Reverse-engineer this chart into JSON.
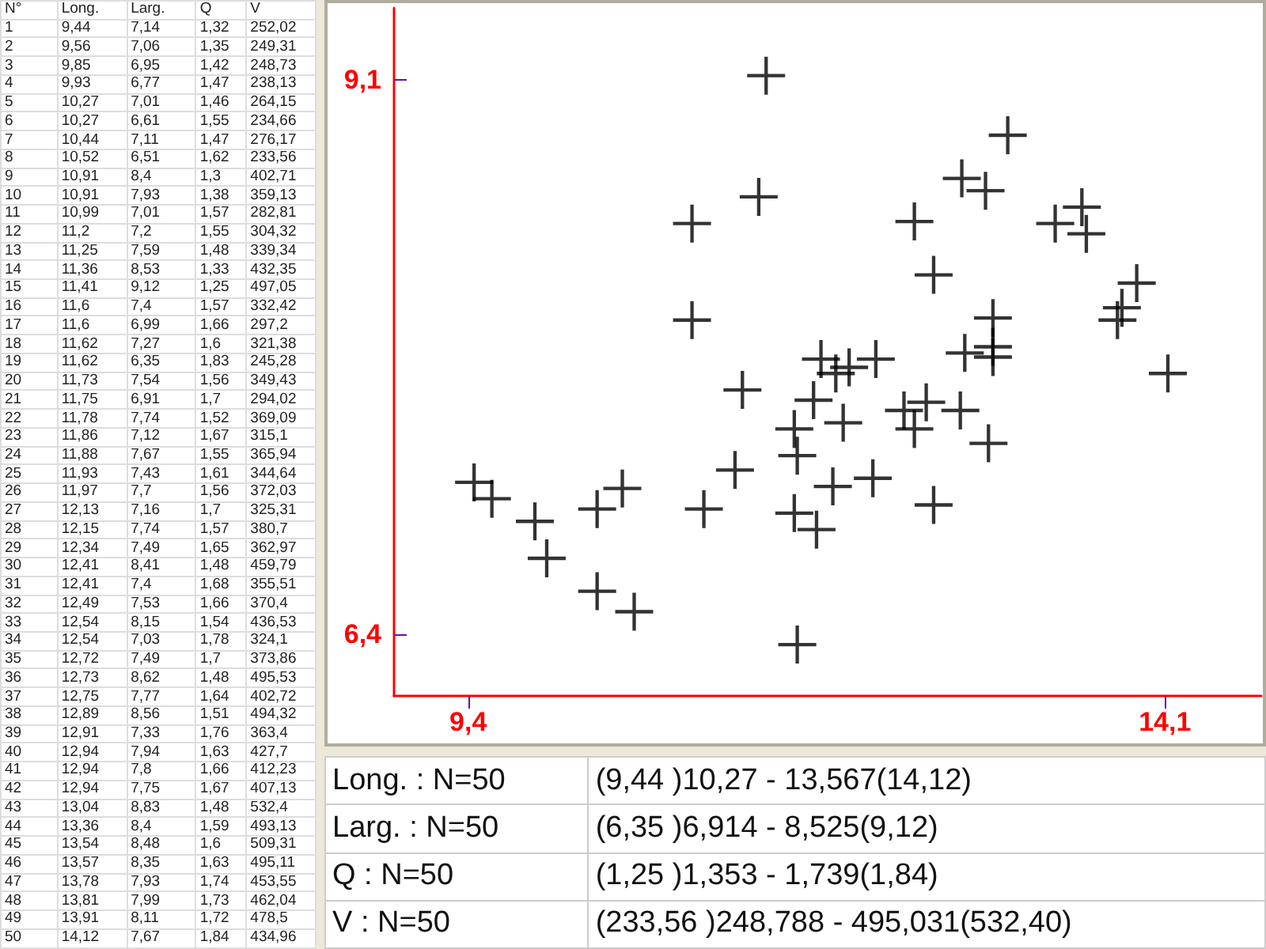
{
  "chart_data": {
    "type": "scatter",
    "marker": "cross",
    "color": "#000000",
    "x": [
      9.44,
      9.56,
      9.85,
      9.93,
      10.27,
      10.27,
      10.44,
      10.52,
      10.91,
      10.91,
      10.99,
      11.2,
      11.25,
      11.36,
      11.41,
      11.6,
      11.6,
      11.62,
      11.62,
      11.73,
      11.75,
      11.78,
      11.86,
      11.88,
      11.93,
      11.97,
      12.13,
      12.15,
      12.34,
      12.41,
      12.41,
      12.49,
      12.54,
      12.54,
      12.72,
      12.73,
      12.75,
      12.89,
      12.91,
      12.94,
      12.94,
      12.94,
      13.04,
      13.36,
      13.54,
      13.57,
      13.78,
      13.81,
      13.91,
      14.12
    ],
    "values": [
      7.14,
      7.06,
      6.95,
      6.77,
      7.01,
      6.61,
      7.11,
      6.51,
      8.4,
      7.93,
      7.01,
      7.2,
      7.59,
      8.53,
      9.12,
      7.4,
      6.99,
      7.27,
      6.35,
      7.54,
      6.91,
      7.74,
      7.12,
      7.67,
      7.43,
      7.7,
      7.16,
      7.74,
      7.49,
      8.41,
      7.4,
      7.53,
      8.15,
      7.03,
      7.49,
      8.62,
      7.77,
      8.56,
      7.33,
      7.94,
      7.8,
      7.75,
      8.83,
      8.4,
      8.48,
      8.35,
      7.93,
      7.99,
      8.11,
      7.67
    ],
    "xlim": [
      8.9,
      14.75
    ],
    "ylim": [
      6.1,
      9.45
    ],
    "xticks": [
      {
        "value": 9.4,
        "label": "9,4"
      },
      {
        "value": 14.1,
        "label": "14,1"
      }
    ],
    "yticks": [
      {
        "value": 6.4,
        "label": "6,4"
      },
      {
        "value": 9.1,
        "label": "9,1"
      }
    ],
    "grid": false,
    "annotations": [
      "N°",
      "Long.",
      "Larg.",
      "Q",
      "V",
      "1",
      "9,44",
      "7,14",
      "1,32",
      "252,02",
      "2",
      "9,56",
      "7,06",
      "1,35",
      "249,31",
      "3",
      "9,85",
      "6,95",
      "1,42",
      "248,73",
      "4",
      "9,93",
      "6,77",
      "1,47",
      "238,13",
      "5",
      "10,27",
      "7,01",
      "1,46",
      "264,15",
      "6",
      "10,27",
      "6,61",
      "1,55",
      "234,66",
      "7",
      "10,44",
      "7,11",
      "1,47",
      "276,17",
      "8",
      "10,52",
      "6,51",
      "1,62",
      "233,56",
      "9",
      "10,91",
      "8,4",
      "1,3",
      "402,71",
      "10",
      "10,91",
      "7,93",
      "1,38",
      "359,13",
      "11",
      "10,99",
      "7,01",
      "1,57",
      "282,81",
      "12",
      "11,2",
      "7,2",
      "1,55",
      "304,32",
      "13",
      "11,25",
      "7,59",
      "1,48",
      "339,34",
      "14",
      "11,36",
      "8,53",
      "1,33",
      "432,35",
      "15",
      "11,41",
      "9,12",
      "1,25",
      "497,05",
      "16",
      "11,6",
      "7,4",
      "1,57",
      "332,42",
      "17",
      "11,6",
      "6,99",
      "1,66",
      "297,2",
      "18",
      "11,62",
      "7,27",
      "1,6",
      "321,38",
      "19",
      "11,62",
      "6,35",
      "1,83",
      "245,28",
      "20",
      "11,73",
      "7,54",
      "1,56",
      "349,43",
      "21",
      "11,75",
      "6,91",
      "1,7",
      "294,02",
      "22",
      "11,78",
      "7,74",
      "1,52",
      "369,09",
      "23",
      "11,86",
      "7,12",
      "1,67",
      "315,1",
      "24",
      "11,88",
      "7,67",
      "1,55",
      "365,94",
      "25",
      "11,93",
      "7,43",
      "1,61",
      "344,64",
      "26",
      "11,97",
      "7,7",
      "1,56",
      "372,03",
      "27",
      "12,13",
      "7,16",
      "1,7",
      "325,31",
      "28",
      "12,15",
      "7,74",
      "1,57",
      "380,7",
      "29",
      "12,34",
      "7,49",
      "1,65",
      "362,97",
      "30",
      "12,41",
      "8,41",
      "1,48",
      "459,79",
      "31",
      "12,41",
      "7,4",
      "1,68",
      "355,51",
      "32",
      "12,49",
      "7,53",
      "1,66",
      "370,4",
      "33",
      "12,54",
      "8,15",
      "1,54",
      "436,53",
      "34",
      "12,54",
      "7,03",
      "1,78",
      "324,1",
      "35",
      "12,72",
      "7,49",
      "1,7",
      "373,86",
      "36",
      "12,73",
      "8,62",
      "1,48",
      "495,53",
      "37",
      "12,75",
      "7,77",
      "1,64",
      "402,72",
      "38",
      "12,89",
      "8,56",
      "1,51",
      "494,32",
      "39",
      "12,91",
      "7,33",
      "1,76",
      "363,4",
      "40",
      "12,94",
      "7,94",
      "1,63",
      "427,7",
      "41",
      "12,94",
      "7,8",
      "1,66",
      "412,23",
      "42",
      "12,94",
      "7,75",
      "1,67",
      "407,13",
      "43",
      "13,04",
      "8,83",
      "1,48",
      "532,4",
      "44",
      "13,36",
      "8,4",
      "1,59",
      "493,13",
      "45",
      "13,54",
      "8,48",
      "1,6",
      "509,31",
      "46",
      "13,57",
      "8,35",
      "1,63",
      "495,11",
      "47",
      "13,78",
      "7,93",
      "1,74",
      "453,55",
      "48",
      "13,81",
      "7,99",
      "1,73",
      "462,04",
      "49",
      "13,91",
      "8,11",
      "1,72",
      "478,5",
      "50",
      "14,12",
      "7,67",
      "1,84",
      "434,96",
      "Long. : N=50",
      "(9,44 )10,27 - 13,567(14,12)",
      "Larg. : N=50",
      "(6,35 )6,914 - 8,525(9,12)",
      "Q : N=50",
      "(1,25 )1,353 - 1,739(1,84)",
      "V : N=50",
      "(233,56 )248,788 - 495,031(532,40)"
    ]
  }
}
